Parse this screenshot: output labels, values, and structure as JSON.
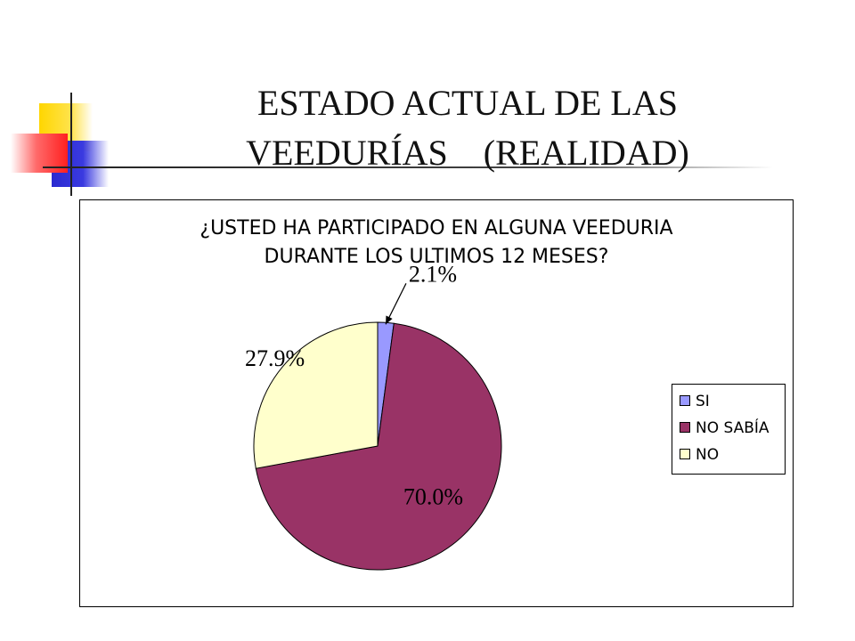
{
  "slide": {
    "title_line1": "ESTADO ACTUAL DE LAS",
    "title_line2": "VEEDURÍAS    (REALIDAD)"
  },
  "chart_data": {
    "type": "pie",
    "title_line1": "¿USTED HA PARTICIPADO EN ALGUNA VEEDURIA",
    "title_line2": "DURANTE LOS ULTIMOS 12 MESES?",
    "categories": [
      "SI",
      "NO SABÍA",
      "NO"
    ],
    "values": [
      2.1,
      70.0,
      27.9
    ],
    "labels": [
      "2.1%",
      "70.0%",
      "27.9%"
    ],
    "colors": [
      "#9999ff",
      "#993366",
      "#ffffcc"
    ],
    "start_angle_deg": 0,
    "direction": "clockwise",
    "legend_position": "right"
  }
}
